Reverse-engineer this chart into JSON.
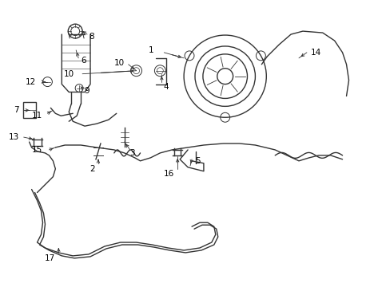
{
  "title": "",
  "bg_color": "#ffffff",
  "line_color": "#333333",
  "label_color": "#000000",
  "figsize": [
    4.89,
    3.6
  ],
  "dpi": 100
}
